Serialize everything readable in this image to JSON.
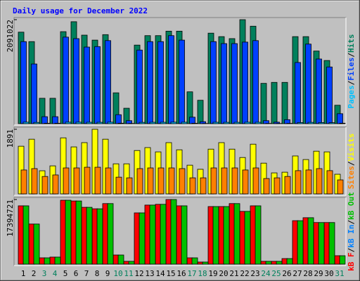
{
  "chart_data": [
    {
      "type": "bar",
      "title": "Daily usage for December 2022",
      "title_color": "#0000ff",
      "categories": [
        "1",
        "2",
        "3",
        "4",
        "5",
        "6",
        "7",
        "8",
        "9",
        "10",
        "11",
        "12",
        "13",
        "14",
        "15",
        "16",
        "17",
        "18",
        "19",
        "20",
        "21",
        "22",
        "23",
        "24",
        "25",
        "26",
        "27",
        "28",
        "29",
        "30",
        "31"
      ],
      "category_colors": [
        "#000000",
        "#000000",
        "#00805c",
        "#00805c",
        "#000000",
        "#000000",
        "#000000",
        "#000000",
        "#000000",
        "#00805c",
        "#00805c",
        "#000000",
        "#000000",
        "#000000",
        "#000000",
        "#000000",
        "#00805c",
        "#00805c",
        "#000000",
        "#000000",
        "#000000",
        "#000000",
        "#000000",
        "#00805c",
        "#00805c",
        "#000000",
        "#000000",
        "#000000",
        "#000000",
        "#000000",
        "#00805c"
      ],
      "legend_separator": "/",
      "legend_reverse": true,
      "series": [
        {
          "name": "Hits",
          "color": "#00805c",
          "values": [
            1840000,
            1650000,
            510000,
            510000,
            1850000,
            2050000,
            1780000,
            1680000,
            1790000,
            620000,
            310000,
            1580000,
            1770000,
            1770000,
            1860000,
            1860000,
            640000,
            470000,
            1820000,
            1750000,
            1710000,
            2091022,
            1960000,
            810000,
            830000,
            830000,
            1750000,
            1750000,
            1460000,
            1270000,
            370000
          ]
        },
        {
          "name": "Files",
          "color": "#0040ff",
          "values": [
            1650000,
            1200000,
            140000,
            140000,
            1740000,
            1710000,
            1540000,
            1550000,
            1670000,
            180000,
            60000,
            1480000,
            1650000,
            1650000,
            1770000,
            1680000,
            130000,
            40000,
            1650000,
            1610000,
            1610000,
            1640000,
            1670000,
            60000,
            30000,
            80000,
            1230000,
            1600000,
            1300000,
            1140000,
            200000
          ]
        },
        {
          "name": "Pages",
          "color": "#00c0ff",
          "values": [
            30000,
            25000,
            8000,
            8000,
            30000,
            30000,
            28000,
            27000,
            30000,
            9000,
            5000,
            26000,
            28000,
            28000,
            30000,
            29000,
            8000,
            4000,
            28000,
            27000,
            27000,
            29000,
            28000,
            5000,
            4000,
            6000,
            22000,
            26000,
            22000,
            20000,
            9000
          ]
        }
      ],
      "ylim": [
        0,
        2091022
      ],
      "yticks": [
        2091022
      ]
    },
    {
      "type": "bar",
      "legend_separator": "/",
      "legend_reverse": true,
      "series": [
        {
          "name": "Visits",
          "color": "#ffff00",
          "values": [
            1395,
            1600,
            677,
            820,
            1640,
            1375,
            1500,
            1891,
            1600,
            880,
            880,
            1270,
            1355,
            1230,
            1500,
            1290,
            840,
            720,
            1310,
            1500,
            1310,
            1065,
            1455,
            900,
            615,
            635,
            1110,
            1005,
            1250,
            1230,
            575
          ]
        },
        {
          "name": "Sites",
          "color": "#ff8000",
          "values": [
            700,
            740,
            510,
            555,
            760,
            760,
            780,
            780,
            760,
            490,
            470,
            740,
            760,
            760,
            760,
            740,
            470,
            470,
            760,
            760,
            760,
            700,
            760,
            450,
            470,
            510,
            680,
            700,
            740,
            680,
            410
          ]
        }
      ],
      "ylim": [
        0,
        1891
      ],
      "yticks": [
        1891
      ]
    },
    {
      "type": "bar",
      "legend_separator": "/",
      "legend_reverse": false,
      "series": [
        {
          "name": "kB F",
          "color": "#ff0000",
          "values": [
            15700000,
            10800000,
            1700000,
            1900000,
            17200000,
            17000000,
            15300000,
            14900000,
            16300000,
            2460000,
            760000,
            13800000,
            15900000,
            16100000,
            17394721,
            15700000,
            1700000,
            570000,
            15500000,
            15500000,
            16300000,
            14200000,
            15700000,
            760000,
            760000,
            1500000,
            11700000,
            12500000,
            11200000,
            11200000,
            2270000
          ]
        },
        {
          "name": "kB In",
          "color": "#0080ff",
          "values": [
            0,
            0,
            0,
            0,
            0,
            0,
            0,
            0,
            0,
            0,
            0,
            0,
            0,
            0,
            0,
            0,
            0,
            0,
            0,
            0,
            0,
            0,
            0,
            0,
            0,
            0,
            0,
            0,
            0,
            0,
            0
          ]
        },
        {
          "name": "kB Out",
          "color": "#00c000",
          "values": [
            15700000,
            10800000,
            1700000,
            1900000,
            17200000,
            17000000,
            15300000,
            14900000,
            16300000,
            2460000,
            760000,
            13800000,
            15900000,
            16100000,
            17394721,
            15700000,
            1700000,
            570000,
            15500000,
            15500000,
            16300000,
            14200000,
            15700000,
            760000,
            760000,
            1500000,
            11700000,
            12500000,
            11200000,
            11200000,
            2270000
          ]
        }
      ],
      "ylim": [
        0,
        17394721
      ],
      "yticks": [
        17394721
      ]
    }
  ]
}
